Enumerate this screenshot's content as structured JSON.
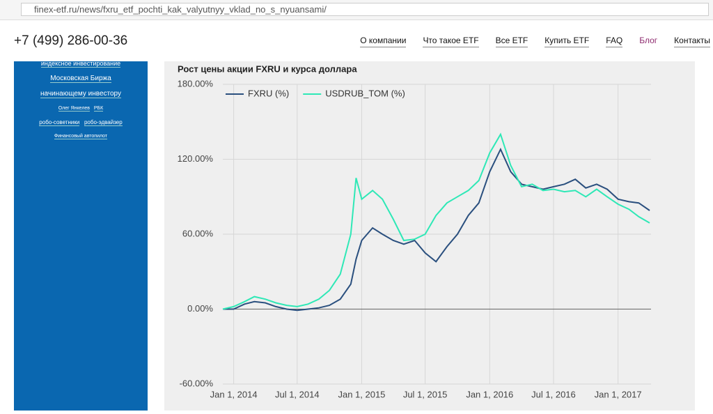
{
  "browser": {
    "url": "finex-etf.ru/news/fxru_etf_pochti_kak_valyutnyy_vklad_no_s_nyuansami/"
  },
  "header": {
    "phone": "+7 (499) 286-00-36",
    "nav": [
      "О компании",
      "Что такое ETF",
      "Все ETF",
      "Купить ETF",
      "FAQ",
      "Блог",
      "Контакты"
    ]
  },
  "sidebar": {
    "tags": [
      "индексное инвестирование",
      "Московская Биржа",
      "начинающему инвестору",
      "Олег Янкелев",
      "РБК",
      "робо-советники",
      "робо-эдвайзер",
      "Финансовый автопилот"
    ]
  },
  "chart_data": {
    "type": "line",
    "title": "Рост цены акции FXRU и курса доллара",
    "x": [
      "2013-12-01",
      "2014-01-01",
      "2014-02-01",
      "2014-03-01",
      "2014-04-01",
      "2014-05-01",
      "2014-06-01",
      "2014-07-01",
      "2014-08-01",
      "2014-09-01",
      "2014-10-01",
      "2014-11-01",
      "2014-12-01",
      "2014-12-16",
      "2015-01-01",
      "2015-02-01",
      "2015-03-01",
      "2015-04-01",
      "2015-05-01",
      "2015-06-01",
      "2015-07-01",
      "2015-08-01",
      "2015-09-01",
      "2015-10-01",
      "2015-11-01",
      "2015-12-01",
      "2016-01-01",
      "2016-02-01",
      "2016-03-01",
      "2016-04-01",
      "2016-05-01",
      "2016-06-01",
      "2016-07-01",
      "2016-08-01",
      "2016-09-01",
      "2016-10-01",
      "2016-11-01",
      "2016-12-01",
      "2017-01-01",
      "2017-02-01",
      "2017-03-01",
      "2017-04-01"
    ],
    "series": [
      {
        "name": "FXRU (%)",
        "color": "#2a4f7e",
        "values": [
          0,
          0,
          4,
          6,
          5,
          2,
          0,
          -1,
          0,
          1,
          3,
          8,
          20,
          40,
          55,
          65,
          60,
          55,
          52,
          55,
          45,
          38,
          50,
          60,
          75,
          85,
          110,
          128,
          110,
          100,
          98,
          96,
          98,
          100,
          104,
          97,
          100,
          96,
          88,
          86,
          85,
          79
        ]
      },
      {
        "name": "USDRUB_TOM (%)",
        "color": "#2ee8b6",
        "values": [
          0,
          2,
          6,
          10,
          8,
          5,
          3,
          2,
          4,
          8,
          15,
          28,
          60,
          105,
          88,
          95,
          88,
          72,
          55,
          56,
          60,
          75,
          85,
          90,
          95,
          103,
          125,
          140,
          115,
          98,
          100,
          95,
          96,
          94,
          95,
          90,
          96,
          90,
          84,
          80,
          74,
          69
        ]
      }
    ],
    "xlim": [
      "2013-12-01",
      "2017-04-05"
    ],
    "xticks": [
      {
        "value": "2014-01-01",
        "label": "Jan 1, 2014"
      },
      {
        "value": "2014-07-01",
        "label": "Jul 1, 2014"
      },
      {
        "value": "2015-01-01",
        "label": "Jan 1, 2015"
      },
      {
        "value": "2015-07-01",
        "label": "Jul 1, 2015"
      },
      {
        "value": "2016-01-01",
        "label": "Jan 1, 2016"
      },
      {
        "value": "2016-07-01",
        "label": "Jul 1, 2016"
      },
      {
        "value": "2017-01-01",
        "label": "Jan 1, 2017"
      }
    ],
    "ylim": [
      -60,
      180
    ],
    "yticks": [
      {
        "value": -60,
        "label": "-60.00%"
      },
      {
        "value": 0,
        "label": "0.00%"
      },
      {
        "value": 60,
        "label": "60.00%"
      },
      {
        "value": 120,
        "label": "120.00%"
      },
      {
        "value": 180,
        "label": "180.00%"
      }
    ],
    "grid": true,
    "legend": "top-left"
  }
}
